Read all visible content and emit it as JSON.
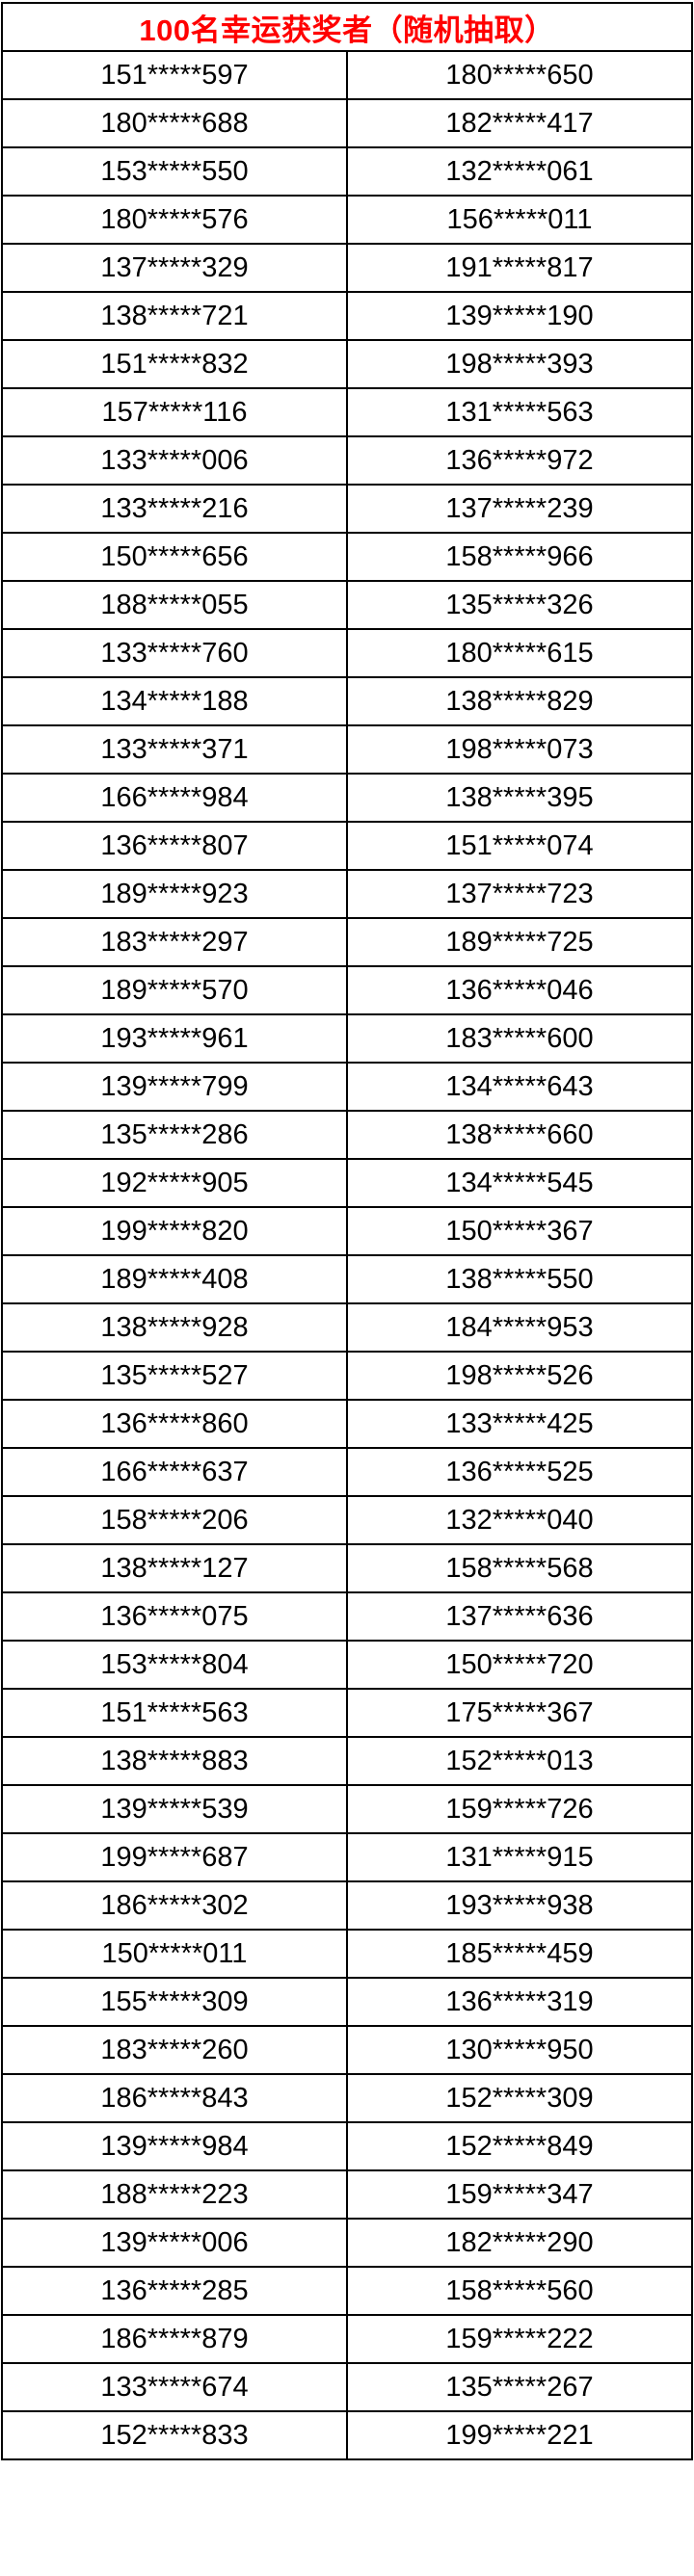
{
  "header": {
    "title": "100名幸运获奖者（随机抽取）",
    "title_color": "#ff0000"
  },
  "table": {
    "columns": 2,
    "border_color": "#000000",
    "rows": [
      [
        "151*****597",
        "180*****650"
      ],
      [
        "180*****688",
        "182*****417"
      ],
      [
        "153*****550",
        "132*****061"
      ],
      [
        "180*****576",
        "156*****011"
      ],
      [
        "137*****329",
        "191*****817"
      ],
      [
        "138*****721",
        "139*****190"
      ],
      [
        "151*****832",
        "198*****393"
      ],
      [
        "157*****116",
        "131*****563"
      ],
      [
        "133*****006",
        "136*****972"
      ],
      [
        "133*****216",
        "137*****239"
      ],
      [
        "150*****656",
        "158*****966"
      ],
      [
        "188*****055",
        "135*****326"
      ],
      [
        "133*****760",
        "180*****615"
      ],
      [
        "134*****188",
        "138*****829"
      ],
      [
        "133*****371",
        "198*****073"
      ],
      [
        "166*****984",
        "138*****395"
      ],
      [
        "136*****807",
        "151*****074"
      ],
      [
        "189*****923",
        "137*****723"
      ],
      [
        "183*****297",
        "189*****725"
      ],
      [
        "189*****570",
        "136*****046"
      ],
      [
        "193*****961",
        "183*****600"
      ],
      [
        "139*****799",
        "134*****643"
      ],
      [
        "135*****286",
        "138*****660"
      ],
      [
        "192*****905",
        "134*****545"
      ],
      [
        "199*****820",
        "150*****367"
      ],
      [
        "189*****408",
        "138*****550"
      ],
      [
        "138*****928",
        "184*****953"
      ],
      [
        "135*****527",
        "198*****526"
      ],
      [
        "136*****860",
        "133*****425"
      ],
      [
        "166*****637",
        "136*****525"
      ],
      [
        "158*****206",
        "132*****040"
      ],
      [
        "138*****127",
        "158*****568"
      ],
      [
        "136*****075",
        "137*****636"
      ],
      [
        "153*****804",
        "150*****720"
      ],
      [
        "151*****563",
        "175*****367"
      ],
      [
        "138*****883",
        "152*****013"
      ],
      [
        "139*****539",
        "159*****726"
      ],
      [
        "199*****687",
        "131*****915"
      ],
      [
        "186*****302",
        "193*****938"
      ],
      [
        "150*****011",
        "185*****459"
      ],
      [
        "155*****309",
        "136*****319"
      ],
      [
        "183*****260",
        "130*****950"
      ],
      [
        "186*****843",
        "152*****309"
      ],
      [
        "139*****984",
        "152*****849"
      ],
      [
        "188*****223",
        "159*****347"
      ],
      [
        "139*****006",
        "182*****290"
      ],
      [
        "136*****285",
        "158*****560"
      ],
      [
        "186*****879",
        "159*****222"
      ],
      [
        "133*****674",
        "135*****267"
      ],
      [
        "152*****833",
        "199*****221"
      ]
    ]
  }
}
